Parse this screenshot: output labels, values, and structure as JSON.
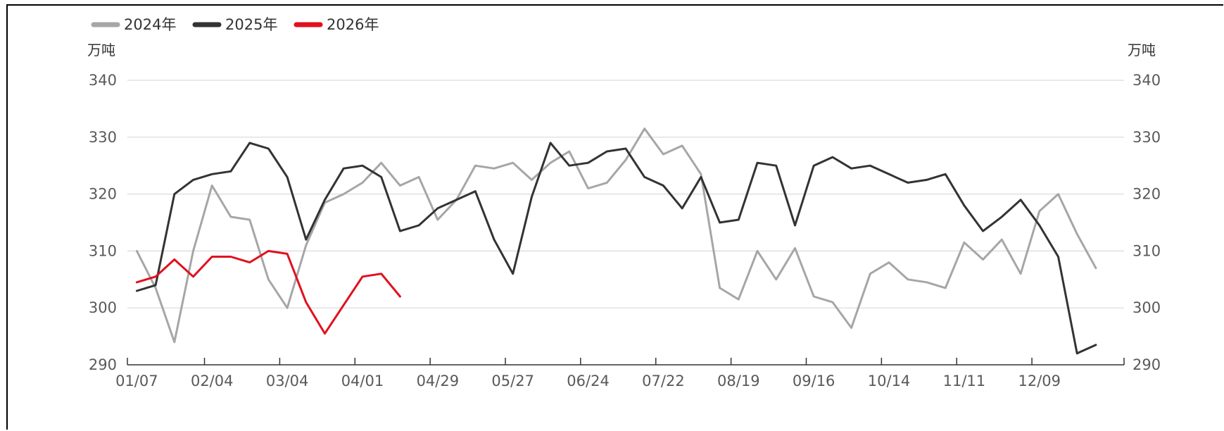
{
  "chart_data": {
    "type": "line",
    "legend_position": "top-left",
    "ylabel_left": "万吨",
    "ylabel_right": "万吨",
    "ylim": [
      290,
      340
    ],
    "yticks": [
      290,
      300,
      310,
      320,
      330,
      340
    ],
    "grid": true,
    "x_range": [
      1,
      53
    ],
    "x_ticks": [
      {
        "x": 1,
        "label": "01/07"
      },
      {
        "x": 5,
        "label": "02/04"
      },
      {
        "x": 9,
        "label": "03/04"
      },
      {
        "x": 13,
        "label": "04/01"
      },
      {
        "x": 17,
        "label": "04/29"
      },
      {
        "x": 21,
        "label": "05/27"
      },
      {
        "x": 25,
        "label": "06/24"
      },
      {
        "x": 29,
        "label": "07/22"
      },
      {
        "x": 33,
        "label": "08/19"
      },
      {
        "x": 37,
        "label": "09/16"
      },
      {
        "x": 41,
        "label": "10/14"
      },
      {
        "x": 45,
        "label": "11/11"
      },
      {
        "x": 49,
        "label": "12/09"
      }
    ],
    "series": [
      {
        "name": "2024年",
        "color": "#a6a6a6",
        "x": [
          1,
          2,
          3,
          4,
          5,
          6,
          7,
          8,
          9,
          10,
          11,
          12,
          13,
          14,
          15,
          16,
          17,
          18,
          19,
          20,
          21,
          22,
          23,
          24,
          25,
          26,
          27,
          28,
          29,
          30,
          31,
          32,
          33,
          34,
          35,
          36,
          37,
          38,
          39,
          40,
          41,
          42,
          43,
          44,
          45,
          46,
          47,
          48,
          49,
          50,
          51,
          52
        ],
        "values": [
          310.0,
          303.5,
          294.0,
          310.0,
          321.5,
          316.0,
          315.5,
          305.0,
          300.0,
          311.0,
          318.5,
          320.0,
          322.0,
          325.5,
          321.5,
          323.0,
          315.5,
          319.0,
          325.0,
          324.5,
          325.5,
          322.5,
          325.5,
          327.5,
          321.0,
          322.0,
          326.0,
          331.5,
          327.0,
          328.5,
          323.5,
          303.5,
          301.5,
          310.0,
          305.0,
          310.5,
          302.0,
          301.0,
          296.5,
          306.0,
          308.0,
          305.0,
          304.5,
          303.5,
          311.5,
          308.5,
          312.0,
          306.0,
          317.0,
          320.0,
          313.0,
          307.0
        ]
      },
      {
        "name": "2025年",
        "color": "#333333",
        "x": [
          1,
          2,
          3,
          4,
          5,
          6,
          7,
          8,
          9,
          10,
          11,
          12,
          13,
          14,
          15,
          16,
          17,
          18,
          19,
          20,
          21,
          22,
          23,
          24,
          25,
          26,
          27,
          28,
          29,
          30,
          31,
          32,
          33,
          34,
          35,
          36,
          37,
          38,
          39,
          40,
          41,
          42,
          43,
          44,
          45,
          46,
          47,
          48,
          49,
          50,
          51,
          52
        ],
        "values": [
          303.0,
          304.0,
          320.0,
          322.5,
          323.5,
          324.0,
          329.0,
          328.0,
          323.0,
          312.0,
          319.0,
          324.5,
          325.0,
          323.0,
          313.5,
          314.5,
          317.5,
          319.0,
          320.5,
          312.0,
          306.0,
          319.5,
          329.0,
          325.0,
          325.5,
          327.5,
          328.0,
          323.0,
          321.5,
          317.5,
          323.0,
          315.0,
          315.5,
          325.5,
          325.0,
          314.5,
          325.0,
          326.5,
          324.5,
          325.0,
          323.5,
          322.0,
          322.5,
          323.5,
          318.0,
          313.5,
          316.0,
          319.0,
          314.5,
          309.0,
          292.0,
          293.5
        ]
      },
      {
        "name": "2026年",
        "color": "#e1101e",
        "x": [
          1,
          2,
          3,
          4,
          5,
          6,
          7,
          8,
          9,
          10,
          11,
          12,
          13,
          14,
          15
        ],
        "values": [
          304.5,
          305.5,
          308.5,
          305.5,
          309.0,
          309.0,
          308.0,
          310.0,
          309.5,
          301.0,
          295.5,
          300.5,
          305.5,
          306.0,
          302.0
        ]
      }
    ]
  }
}
